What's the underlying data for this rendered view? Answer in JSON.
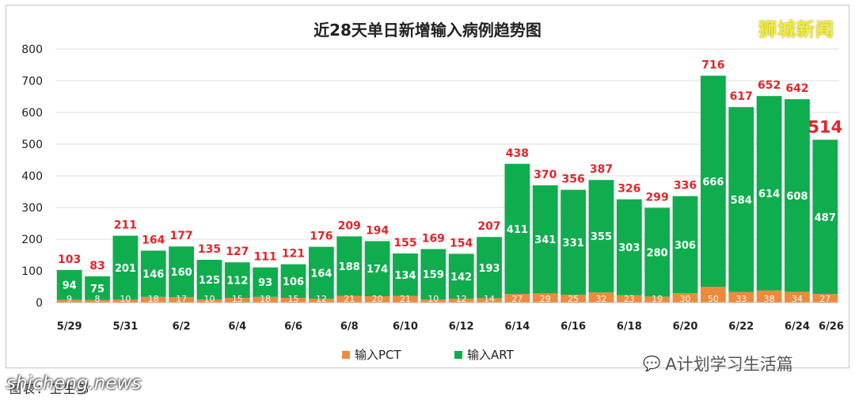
{
  "brand": "狮城新闻",
  "wechat": "A计划学习生活篇",
  "site": "shicheng.news",
  "caption": "图表：卫生部",
  "colors": {
    "pct": "#ee8a3c",
    "art": "#10ad4f",
    "label": "#e0262a",
    "inner": "#ffffff"
  },
  "chart_data": {
    "type": "bar",
    "stacked": true,
    "title": "近28天单日新增输入病例趋势图",
    "ylim": [
      0,
      800
    ],
    "yticks": [
      0,
      100,
      200,
      300,
      400,
      500,
      600,
      700,
      800
    ],
    "grid": true,
    "legend_position": "bottom-center",
    "categories": [
      "5/29",
      "5/30",
      "5/31",
      "6/1",
      "6/2",
      "6/3",
      "6/4",
      "6/5",
      "6/6",
      "6/7",
      "6/8",
      "6/9",
      "6/10",
      "6/11",
      "6/12",
      "6/13",
      "6/14",
      "6/15",
      "6/16",
      "6/17",
      "6/18",
      "6/19",
      "6/20",
      "6/21",
      "6/22",
      "6/23",
      "6/24",
      "6/25"
    ],
    "xtick_labels": [
      "5/29",
      "5/31",
      "6/2",
      "6/4",
      "6/6",
      "6/8",
      "6/10",
      "6/12",
      "6/14",
      "6/16",
      "6/18",
      "6/20",
      "6/22",
      "6/24",
      "6/26"
    ],
    "series": [
      {
        "name": "输入PCT",
        "values": [
          9,
          8,
          10,
          18,
          17,
          10,
          15,
          18,
          15,
          12,
          21,
          20,
          21,
          10,
          12,
          14,
          27,
          29,
          25,
          32,
          23,
          19,
          30,
          50,
          33,
          38,
          34,
          27
        ]
      },
      {
        "name": "输入ART",
        "values": [
          94,
          75,
          201,
          146,
          160,
          125,
          112,
          93,
          106,
          164,
          188,
          174,
          134,
          159,
          142,
          193,
          411,
          341,
          331,
          355,
          303,
          280,
          306,
          666,
          584,
          614,
          608,
          487
        ]
      }
    ],
    "totals": [
      103,
      83,
      211,
      164,
      177,
      135,
      127,
      111,
      121,
      176,
      209,
      194,
      155,
      169,
      154,
      207,
      438,
      370,
      356,
      387,
      326,
      299,
      336,
      716,
      617,
      652,
      642,
      514
    ],
    "highlight_last": true
  }
}
